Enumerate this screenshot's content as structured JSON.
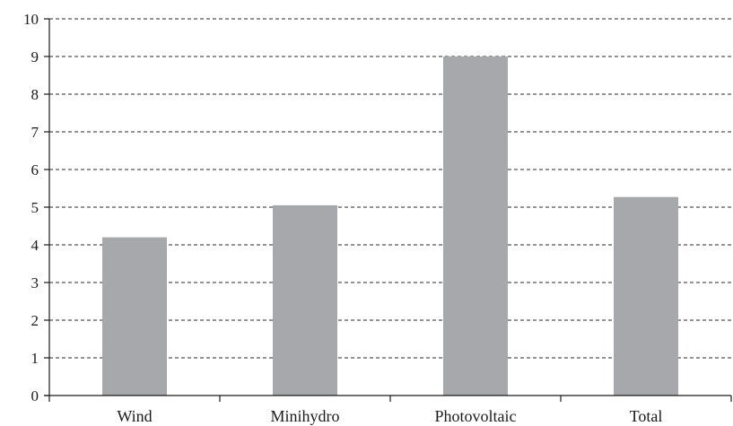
{
  "chart_data": {
    "type": "bar",
    "categories": [
      "Wind",
      "Minihydro",
      "Photovoltaic",
      "Total"
    ],
    "values": [
      4.2,
      5.05,
      9.0,
      5.27
    ],
    "title": "",
    "xlabel": "",
    "ylabel": "",
    "ylim": [
      0,
      10
    ],
    "yticks": [
      "0",
      "1",
      "2",
      "3",
      "4",
      "5",
      "6",
      "7",
      "8",
      "9",
      "10"
    ],
    "grid": "horizontal dashed",
    "bar_color": "#a7a8ab"
  }
}
